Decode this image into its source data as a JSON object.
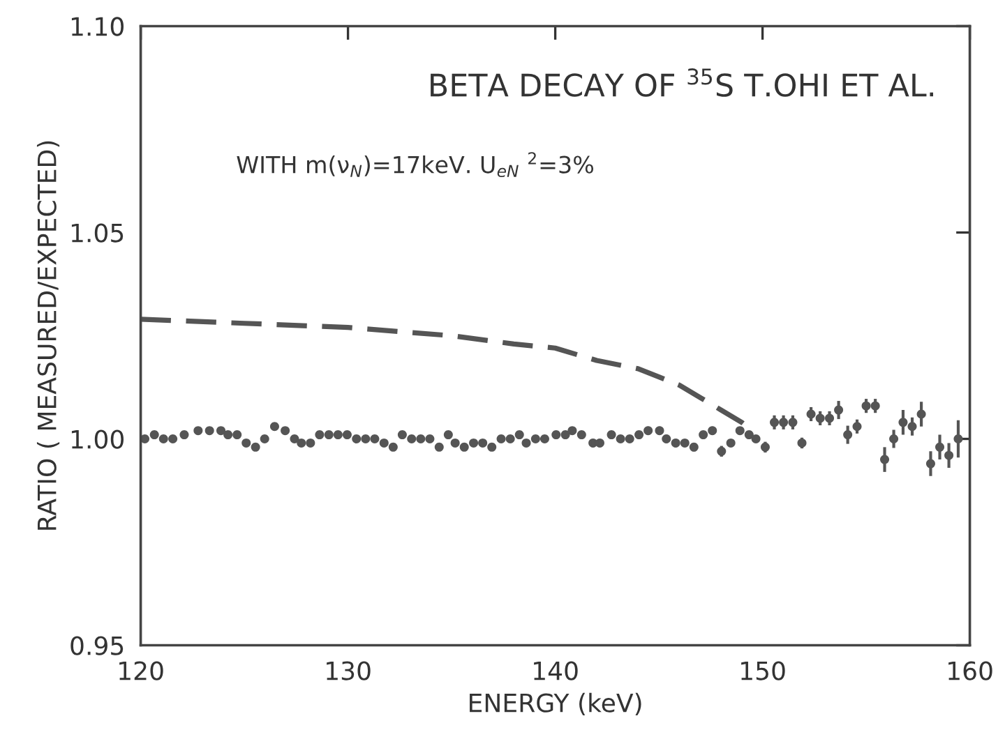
{
  "chart_data": {
    "type": "scatter",
    "title": "BETA DECAY OF $^{35}$S T.OHI ET AL.",
    "xlabel": "ENERGY (keV)",
    "ylabel": "RATIO ( MEASURED/EXPECTED)",
    "annotations": [
      "WITH m(ν$_{N}$)=17keV. U$_{eN}$ $^{2}$=3%"
    ],
    "xlim": [
      120,
      160
    ],
    "ylim": [
      0.95,
      1.1
    ],
    "xticks": [
      120,
      130,
      140,
      150,
      160
    ],
    "yticks": [
      0.95,
      {
        "value": 1.0,
        "label": "1.00"
      },
      1.05,
      {
        "value": 1.1,
        "label": "1.10"
      }
    ],
    "grid": false,
    "legend": false,
    "series": [
      {
        "color": "#555555",
        "marker": "circle",
        "x": [
          120.2,
          120.66,
          121.1,
          121.55,
          122.1,
          122.77,
          123.32,
          123.87,
          124.21,
          124.65,
          125.09,
          125.54,
          125.98,
          126.46,
          126.97,
          127.42,
          127.75,
          128.19,
          128.63,
          129.08,
          129.52,
          129.96,
          130.41,
          130.85,
          131.29,
          131.74,
          132.18,
          132.62,
          133.07,
          133.51,
          133.95,
          134.4,
          134.84,
          135.17,
          135.61,
          136.06,
          136.5,
          136.94,
          137.39,
          137.83,
          138.27,
          138.6,
          139.05,
          139.49,
          140.04,
          140.49,
          140.82,
          141.27,
          141.82,
          142.15,
          142.71,
          143.15,
          143.59,
          144.04,
          144.48,
          145.03,
          145.36,
          145.81,
          146.25,
          146.69,
          147.14,
          147.58,
          148.02,
          148.47,
          148.91,
          149.35,
          149.68,
          150.13,
          150.57,
          151.01,
          151.46,
          151.9,
          152.34,
          152.78,
          153.23,
          153.67,
          154.11,
          154.56,
          155.0,
          155.44,
          155.89,
          156.33,
          156.78,
          157.22,
          157.66,
          158.11,
          158.55,
          158.99,
          159.44
        ],
        "values": [
          1.0,
          1.001,
          1.0,
          1.0,
          1.001,
          1.002,
          1.002,
          1.002,
          1.001,
          1.001,
          0.999,
          0.998,
          1.0,
          1.003,
          1.002,
          1.0,
          0.999,
          0.999,
          1.001,
          1.001,
          1.001,
          1.001,
          1.0,
          1.0,
          1.0,
          0.999,
          0.998,
          1.001,
          1.0,
          1.0,
          1.0,
          0.998,
          1.001,
          0.999,
          0.998,
          0.999,
          0.999,
          0.998,
          1.0,
          1.0,
          1.001,
          0.999,
          1.0,
          1.0,
          1.001,
          1.001,
          1.002,
          1.001,
          0.999,
          0.999,
          1.001,
          1.0,
          1.0,
          1.001,
          1.002,
          1.002,
          1.0,
          0.999,
          0.999,
          0.998,
          1.001,
          1.002,
          0.997,
          0.999,
          1.002,
          1.001,
          1.0,
          0.998,
          1.004,
          1.004,
          1.004,
          0.999,
          1.006,
          1.005,
          1.005,
          1.007,
          1.001,
          1.003,
          1.008,
          1.008,
          0.995,
          1.0,
          1.004,
          1.003,
          1.006,
          0.994,
          0.998,
          0.996,
          1.0
        ],
        "errors": [
          null,
          null,
          null,
          null,
          null,
          null,
          null,
          null,
          null,
          null,
          null,
          null,
          null,
          null,
          null,
          null,
          null,
          null,
          null,
          null,
          null,
          null,
          null,
          null,
          null,
          null,
          null,
          null,
          null,
          null,
          null,
          null,
          null,
          null,
          null,
          null,
          null,
          null,
          null,
          null,
          null,
          null,
          null,
          null,
          null,
          null,
          null,
          null,
          0.001,
          0.001,
          null,
          null,
          null,
          null,
          0.001,
          0.001,
          0.001,
          0.001,
          null,
          0.001,
          null,
          0.001,
          0.0013,
          null,
          null,
          null,
          null,
          0.0013,
          0.0017,
          0.0017,
          0.0017,
          0.0013,
          0.0017,
          0.0017,
          0.0017,
          0.0022,
          0.0022,
          0.0017,
          0.0017,
          0.0017,
          0.003,
          0.0022,
          0.003,
          0.0022,
          0.003,
          0.003,
          0.003,
          0.003,
          0.0045
        ]
      },
      {
        "type": "line",
        "color": "#555555",
        "line_style": "dashed",
        "marker": "none",
        "x": [
          120,
          125,
          130,
          135,
          138,
          140,
          142,
          144,
          145,
          146,
          147,
          148,
          149,
          149.5
        ],
        "values": [
          1.029,
          1.028,
          1.027,
          1.025,
          1.023,
          1.022,
          1.019,
          1.017,
          1.015,
          1.013,
          1.01,
          1.007,
          1.004,
          1.002
        ]
      }
    ]
  }
}
